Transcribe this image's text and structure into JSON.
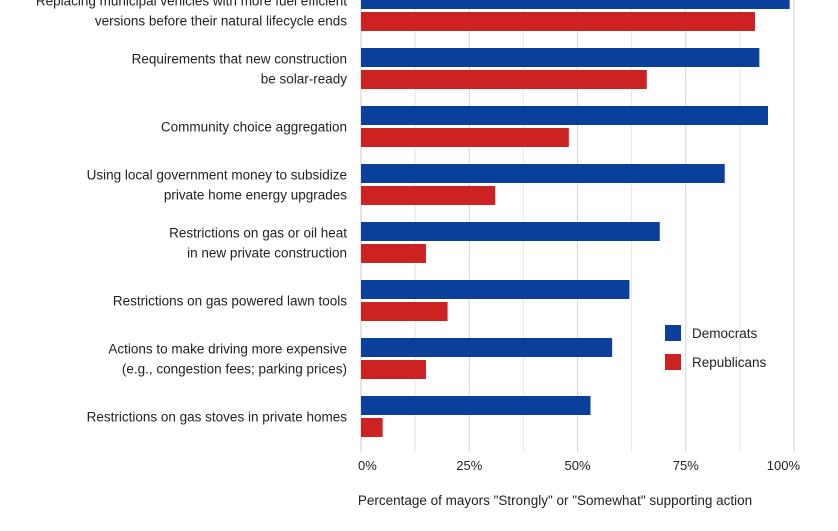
{
  "chart_data": {
    "type": "bar",
    "orientation": "horizontal",
    "categories": [
      [
        "Replacing municipal vehicles with more fuel efficient",
        "versions before their natural lifecycle ends"
      ],
      [
        "Requirements that new construction",
        "be solar-ready"
      ],
      [
        "Community choice aggregation"
      ],
      [
        "Using local government money to subsidize",
        "private home energy upgrades"
      ],
      [
        "Restrictions on gas or oil heat",
        "in new private construction"
      ],
      [
        "Restrictions on gas powered lawn tools"
      ],
      [
        "Actions to make driving more expensive",
        "(e.g., congestion fees; parking prices)"
      ],
      [
        "Restrictions on gas stoves in private homes"
      ]
    ],
    "series": [
      {
        "name": "Democrats",
        "color": "#0a3f9c",
        "values": [
          99,
          92,
          94,
          84,
          69,
          62,
          58,
          53
        ]
      },
      {
        "name": "Republicans",
        "color": "#cc2222",
        "values": [
          91,
          66,
          48,
          31,
          15,
          20,
          15,
          5
        ]
      }
    ],
    "xlim": [
      0,
      100
    ],
    "xticks": [
      "0%",
      "25%",
      "50%",
      "75%",
      "100%"
    ],
    "xlabel": "Percentage of mayors \"Strongly\" or \"Somewhat\" supporting action",
    "grid": true,
    "legend": "right"
  }
}
